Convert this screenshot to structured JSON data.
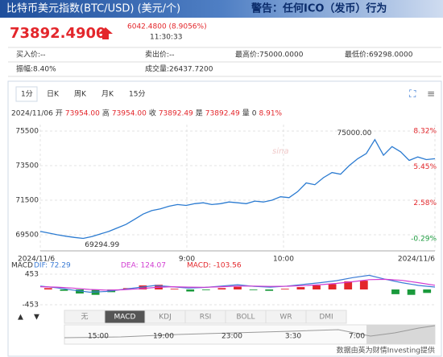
{
  "header": {
    "title": "比特币美元指数(BTC/USD) (美元/个)",
    "warning": "警告：任何ICO（发币）行为"
  },
  "quote": {
    "price": "73892.4900",
    "change": "6042.4800 (8.9056%)",
    "time": "11:30:33"
  },
  "info": {
    "row1": [
      "买入价:--",
      "卖出价:--",
      "最高价:75000.0000",
      "最低价:69298.0000"
    ],
    "row2": [
      "振幅:8.40%",
      "成交量:26437.7200"
    ]
  },
  "tabs": [
    "1分",
    "日K",
    "周K",
    "月K",
    "15分"
  ],
  "ohlc": {
    "date": "2024/11/06",
    "open_label": "开",
    "open": "73954.00",
    "high_label": "高",
    "high": "73954.00",
    "close_label": "收",
    "close": "73892.49",
    "avg_label": "是",
    "avg": "73892.49",
    "vol_label": "量",
    "vol": "0",
    "pct": "8.91%"
  },
  "chart_data": {
    "type": "line",
    "color": "#2b7bd1",
    "values": [
      69700,
      69600,
      69500,
      69420,
      69350,
      69295,
      69400,
      69550,
      69700,
      69900,
      70100,
      70400,
      70700,
      70900,
      71000,
      71150,
      71250,
      71200,
      71300,
      71350,
      71250,
      71300,
      71400,
      71350,
      71300,
      71450,
      71400,
      71500,
      71700,
      71650,
      72000,
      72500,
      72400,
      72800,
      73100,
      73000,
      73500,
      73900,
      74200,
      75000,
      74100,
      74600,
      74300,
      73800,
      74000,
      73850,
      73900
    ],
    "ylim": [
      69130,
      75870
    ],
    "yticks": [
      75500,
      73500,
      71500,
      69500
    ],
    "y2lim": [
      -0.48,
      8.83
    ],
    "y2ticks": [
      {
        "value": 8.32,
        "label": "8.32%"
      },
      {
        "value": 5.45,
        "label": "5.45%"
      },
      {
        "value": 2.58,
        "label": "2.58%"
      },
      {
        "value": -0.29,
        "label": "-0.29%"
      }
    ],
    "annotations": {
      "high": "75000.00",
      "low": "69294.99"
    },
    "x_labels": [
      "2024/11/6",
      "9:00",
      "10:00",
      "2024/11/6"
    ],
    "grid": true
  },
  "macd": {
    "title": "MACD",
    "dif_label": "DIF: 72.29",
    "dea_label": "DEA: 124.07",
    "macd_label": "MACD: -103.56",
    "ylim": [
      -453,
      453
    ],
    "yticks": [
      453,
      -453
    ],
    "dif": [
      100,
      50,
      -20,
      -80,
      -60,
      0,
      60,
      120,
      80,
      40,
      60,
      100,
      140,
      90,
      70,
      100,
      150,
      200,
      260,
      350,
      420,
      300,
      200,
      120,
      72
    ],
    "dea": [
      80,
      70,
      40,
      0,
      -20,
      -10,
      20,
      60,
      80,
      70,
      65,
      80,
      100,
      100,
      90,
      95,
      115,
      140,
      180,
      230,
      290,
      300,
      270,
      200,
      124
    ],
    "hist": [
      40,
      -40,
      -120,
      -160,
      -80,
      40,
      120,
      140,
      20,
      -60,
      -20,
      40,
      80,
      -20,
      -40,
      20,
      70,
      120,
      160,
      240,
      260,
      0,
      -140,
      -160,
      -103
    ],
    "dif_color": "#3a7bd5",
    "dea_color": "#d13bd1"
  },
  "indicators": [
    "无",
    "MACD",
    "KDJ",
    "RSI",
    "BOLL",
    "WR",
    "DMI"
  ],
  "navigator": [
    "15:00",
    "19:00",
    "23:00",
    "3:30",
    "7:00"
  ],
  "footer": "数据由英为财情Investing提供"
}
